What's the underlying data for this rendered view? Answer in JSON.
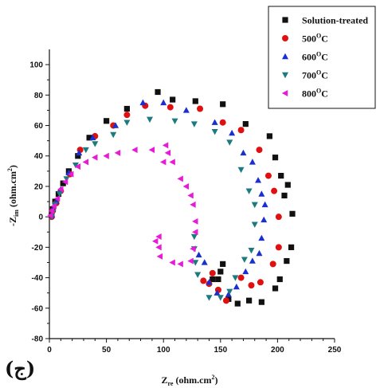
{
  "panel_label": "(ج)",
  "chart_data": {
    "type": "scatter",
    "xlabel_main": "Z",
    "xlabel_sub": "re",
    "xlabel_unit": "(ohm.cm",
    "xlabel_sup": "2",
    "xlabel_close": ")",
    "ylabel_main": "-Z",
    "ylabel_sub": "im",
    "ylabel_unit": "(ohm.cm",
    "ylabel_sup": "2",
    "ylabel_close": ")",
    "xlim": [
      0,
      250
    ],
    "ylim": [
      -80,
      110
    ],
    "xticks": [
      0,
      50,
      100,
      150,
      200,
      250
    ],
    "yticks": [
      -80,
      -60,
      -40,
      -20,
      0,
      20,
      40,
      60,
      80,
      100
    ],
    "legend_position": "top-right",
    "series": [
      {
        "name": "Solution-treated",
        "marker": "square",
        "color": "#111111",
        "points": [
          [
            2,
            1
          ],
          [
            3,
            5
          ],
          [
            5,
            10
          ],
          [
            8,
            15
          ],
          [
            12,
            22
          ],
          [
            17,
            30
          ],
          [
            25,
            40
          ],
          [
            35,
            52
          ],
          [
            50,
            63
          ],
          [
            68,
            71
          ],
          [
            95,
            82
          ],
          [
            108,
            77
          ],
          [
            128,
            76
          ],
          [
            152,
            74
          ],
          [
            172,
            61
          ],
          [
            193,
            53
          ],
          [
            198,
            39
          ],
          [
            203,
            27
          ],
          [
            206,
            14
          ],
          [
            209,
            21
          ],
          [
            213,
            2
          ],
          [
            212,
            -20
          ],
          [
            208,
            -29
          ],
          [
            202,
            -41
          ],
          [
            198,
            -47
          ],
          [
            186,
            -56
          ],
          [
            175,
            -55
          ],
          [
            165,
            -57
          ],
          [
            157,
            -54
          ],
          [
            152,
            -31
          ],
          [
            150,
            -36
          ],
          [
            148,
            -41
          ],
          [
            143,
            -41
          ]
        ]
      },
      {
        "name": "500",
        "label_sup": "O",
        "label_unit": "C",
        "marker": "circle",
        "color": "#e01010",
        "points": [
          [
            2,
            0
          ],
          [
            3,
            4
          ],
          [
            6,
            9
          ],
          [
            10,
            17
          ],
          [
            18,
            28
          ],
          [
            27,
            44
          ],
          [
            40,
            53
          ],
          [
            56,
            60
          ],
          [
            68,
            67
          ],
          [
            84,
            73
          ],
          [
            106,
            72
          ],
          [
            132,
            71
          ],
          [
            152,
            62
          ],
          [
            168,
            57
          ],
          [
            184,
            44
          ],
          [
            192,
            27
          ],
          [
            197,
            17
          ],
          [
            201,
            0
          ],
          [
            201,
            -20
          ],
          [
            196,
            -31
          ],
          [
            185,
            -43
          ],
          [
            177,
            -45
          ],
          [
            168,
            -40
          ],
          [
            155,
            -55
          ],
          [
            148,
            -48
          ],
          [
            140,
            -44
          ],
          [
            143,
            -37
          ],
          [
            135,
            -42
          ]
        ]
      },
      {
        "name": "600",
        "label_sup": "O",
        "label_unit": "C",
        "marker": "triangle-up",
        "color": "#1a2fd0",
        "points": [
          [
            2,
            1
          ],
          [
            3,
            5
          ],
          [
            6,
            10
          ],
          [
            10,
            18
          ],
          [
            17,
            29
          ],
          [
            26,
            42
          ],
          [
            38,
            52
          ],
          [
            58,
            60
          ],
          [
            82,
            75
          ],
          [
            100,
            75
          ],
          [
            120,
            70
          ],
          [
            145,
            62
          ],
          [
            160,
            55
          ],
          [
            170,
            42
          ],
          [
            178,
            36
          ],
          [
            183,
            24
          ],
          [
            186,
            15
          ],
          [
            189,
            8
          ],
          [
            188,
            -2
          ],
          [
            186,
            -14
          ],
          [
            184,
            -24
          ],
          [
            178,
            -29
          ],
          [
            172,
            -36
          ],
          [
            164,
            -46
          ],
          [
            157,
            -51
          ],
          [
            147,
            -50
          ],
          [
            140,
            -43
          ],
          [
            136,
            -30
          ],
          [
            131,
            -25
          ]
        ]
      },
      {
        "name": "700",
        "label_sup": "O",
        "label_unit": "C",
        "marker": "triangle-down",
        "color": "#1d7a80",
        "points": [
          [
            2,
            0
          ],
          [
            3,
            3
          ],
          [
            5,
            8
          ],
          [
            9,
            15
          ],
          [
            15,
            25
          ],
          [
            23,
            34
          ],
          [
            32,
            44
          ],
          [
            40,
            48
          ],
          [
            56,
            54
          ],
          [
            68,
            62
          ],
          [
            88,
            64
          ],
          [
            110,
            63
          ],
          [
            127,
            61
          ],
          [
            145,
            56
          ],
          [
            158,
            49
          ],
          [
            168,
            31
          ],
          [
            175,
            17
          ],
          [
            180,
            8
          ],
          [
            180,
            -5
          ],
          [
            177,
            -22
          ],
          [
            171,
            -28
          ],
          [
            163,
            -40
          ],
          [
            158,
            -49
          ],
          [
            150,
            -53
          ],
          [
            140,
            -53
          ],
          [
            130,
            -38
          ],
          [
            128,
            -30
          ],
          [
            127,
            -21
          ],
          [
            127,
            -13
          ]
        ]
      },
      {
        "name": "800",
        "label_sup": "O",
        "label_unit": "C",
        "marker": "triangle-left",
        "color": "#e81ad8",
        "points": [
          [
            1,
            1
          ],
          [
            2,
            4
          ],
          [
            4,
            7
          ],
          [
            7,
            12
          ],
          [
            10,
            18
          ],
          [
            14,
            23
          ],
          [
            19,
            28
          ],
          [
            25,
            33
          ],
          [
            32,
            36
          ],
          [
            40,
            39
          ],
          [
            50,
            40
          ],
          [
            60,
            42
          ],
          [
            75,
            44
          ],
          [
            90,
            44
          ],
          [
            100,
            36
          ],
          [
            102,
            47
          ],
          [
            104,
            42
          ],
          [
            108,
            36
          ],
          [
            115,
            25
          ],
          [
            120,
            20
          ],
          [
            124,
            14
          ],
          [
            126,
            8
          ],
          [
            128,
            -3
          ],
          [
            128,
            -10
          ],
          [
            126,
            -21
          ],
          [
            124,
            -29
          ],
          [
            115,
            -31
          ],
          [
            108,
            -30
          ],
          [
            97,
            -26
          ],
          [
            96,
            -20
          ],
          [
            93,
            -16
          ],
          [
            96,
            -13
          ]
        ]
      }
    ]
  }
}
